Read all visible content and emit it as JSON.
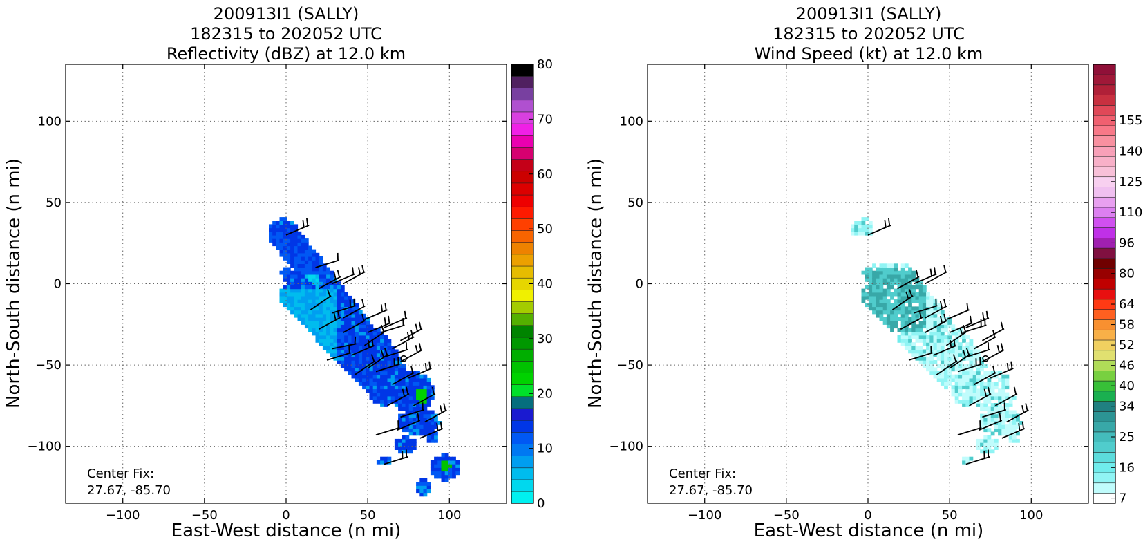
{
  "chart_data": [
    {
      "type": "heatmap",
      "title_lines": [
        "200913I1 (SALLY)",
        "182315 to 202052 UTC",
        "Reflectivity (dBZ) at 12.0 km"
      ],
      "xlabel": "East-West distance (n mi)",
      "ylabel": "North-South distance (n mi)",
      "xlim": [
        -135,
        135
      ],
      "ylim": [
        -135,
        135
      ],
      "xticks": [
        -100,
        -50,
        0,
        50,
        100
      ],
      "yticks": [
        -100,
        -50,
        0,
        50,
        100
      ],
      "xtick_labels": [
        "−100",
        "−50",
        "0",
        "50",
        "100"
      ],
      "ytick_labels": [
        "−100",
        "−50",
        "0",
        "50",
        "100"
      ],
      "grid": true,
      "annotation": [
        "Center Fix:",
        "27.67, -85.70"
      ],
      "colorbar": {
        "min": 0,
        "max": 80,
        "tick_values": [
          0,
          10,
          20,
          30,
          40,
          50,
          60,
          70,
          80
        ],
        "tick_labels": [
          "0",
          "10",
          "20",
          "30",
          "40",
          "50",
          "60",
          "70",
          "80"
        ],
        "colors": [
          "#00f0f0",
          "#00d8ee",
          "#00bcee",
          "#009ef0",
          "#0078f2",
          "#0058f4",
          "#0036e6",
          "#1a1ad0",
          "#056e7e",
          "#00e02a",
          "#00d200",
          "#00c200",
          "#00ae00",
          "#009800",
          "#008400",
          "#54b000",
          "#a4cc00",
          "#f0f000",
          "#e6d600",
          "#e6bc00",
          "#eca000",
          "#ee8200",
          "#f86400",
          "#ff4000",
          "#fe1a00",
          "#ee0000",
          "#dc0000",
          "#cc0000",
          "#c40018",
          "#d60070",
          "#ea00b0",
          "#f020e6",
          "#d840e0",
          "#b050d0",
          "#7840a0",
          "#502060",
          "#000000"
        ]
      },
      "wind_barbs": [
        [
          0,
          30,
          0.4
        ],
        [
          18,
          10,
          0.3
        ],
        [
          20,
          -3,
          0.5
        ],
        [
          28,
          0,
          0.4
        ],
        [
          35,
          0,
          0.5
        ],
        [
          15,
          -16,
          0.6
        ],
        [
          28,
          -18,
          0.3
        ],
        [
          35,
          -21,
          0.5
        ],
        [
          48,
          -22,
          0.4
        ],
        [
          60,
          -27,
          0.4
        ],
        [
          20,
          -28,
          0.5
        ],
        [
          35,
          -30,
          0.5
        ],
        [
          50,
          -30,
          0.4
        ],
        [
          58,
          -30,
          0.3
        ],
        [
          70,
          -35,
          0.5
        ],
        [
          48,
          -38,
          0.6
        ],
        [
          65,
          -40,
          0.5
        ],
        [
          28,
          -40,
          0.2
        ],
        [
          40,
          -44,
          0.4
        ],
        [
          25,
          -47,
          0.3
        ],
        [
          50,
          -52,
          0.6
        ],
        [
          60,
          -45,
          0.3
        ],
        [
          70,
          -48,
          0.5
        ],
        [
          42,
          -56,
          0.6
        ],
        [
          55,
          -54,
          0.3
        ],
        [
          65,
          -62,
          0.5
        ],
        [
          75,
          -58,
          0.4
        ],
        [
          78,
          -75,
          0.5
        ],
        [
          62,
          -75,
          0.5
        ],
        [
          70,
          -82,
          0.3
        ],
        [
          85,
          -85,
          0.5
        ],
        [
          68,
          -90,
          0.4
        ],
        [
          82,
          -95,
          0.4
        ],
        [
          55,
          -93,
          0.3
        ],
        [
          60,
          -111,
          0.3
        ]
      ]
    },
    {
      "type": "heatmap",
      "title_lines": [
        "200913I1 (SALLY)",
        "182315 to 202052 UTC",
        "Wind Speed (kt) at 12.0 km"
      ],
      "xlabel": "East-West distance (n mi)",
      "ylabel": "North-South distance (n mi)",
      "xlim": [
        -135,
        135
      ],
      "ylim": [
        -135,
        135
      ],
      "xticks": [
        -100,
        -50,
        0,
        50,
        100
      ],
      "yticks": [
        -100,
        -50,
        0,
        50,
        100
      ],
      "xtick_labels": [
        "−100",
        "−50",
        "0",
        "50",
        "100"
      ],
      "ytick_labels": [
        "−100",
        "−50",
        "0",
        "50",
        "100"
      ],
      "grid": true,
      "annotation": [
        "Center Fix:",
        "27.67, -85.70"
      ],
      "colorbar": {
        "tick_labels": [
          "7",
          "16",
          "25",
          "34",
          "40",
          "46",
          "52",
          "58",
          "64",
          "80",
          "96",
          "110",
          "125",
          "140",
          "155"
        ],
        "tick_bins": [
          0,
          3,
          6,
          9,
          11,
          13,
          15,
          17,
          19,
          22,
          25,
          28,
          31,
          34,
          37
        ],
        "colors": [
          "#ffffff",
          "#c0fcfc",
          "#90f4f4",
          "#70ecec",
          "#5cdcdc",
          "#50cccc",
          "#44bcbc",
          "#38a8a8",
          "#2c9494",
          "#208080",
          "#1ab050",
          "#38c038",
          "#78d040",
          "#b0dc58",
          "#e0e070",
          "#f0d060",
          "#f8b048",
          "#f89030",
          "#fe6020",
          "#ff3a14",
          "#e81010",
          "#c00000",
          "#980000",
          "#700000",
          "#801040",
          "#a020b0",
          "#c030e8",
          "#d050f0",
          "#dc80f0",
          "#e8a0f0",
          "#f0c0f0",
          "#f8d0f0",
          "#f8c0d8",
          "#f8b0c8",
          "#f8a0b8",
          "#f890a0",
          "#f87888",
          "#f06070",
          "#e04858",
          "#c83040",
          "#b02038",
          "#a01838",
          "#901038"
        ]
      },
      "wind_barbs": [
        [
          0,
          30,
          0.4
        ],
        [
          18,
          -3,
          0.5
        ],
        [
          28,
          0,
          0.4
        ],
        [
          35,
          0,
          0.5
        ],
        [
          15,
          -16,
          0.6
        ],
        [
          28,
          -18,
          0.3
        ],
        [
          35,
          -21,
          0.5
        ],
        [
          48,
          -22,
          0.4
        ],
        [
          60,
          -27,
          0.4
        ],
        [
          20,
          -28,
          0.5
        ],
        [
          35,
          -30,
          0.5
        ],
        [
          50,
          -30,
          0.4
        ],
        [
          58,
          -30,
          0.3
        ],
        [
          70,
          -35,
          0.5
        ],
        [
          48,
          -38,
          0.6
        ],
        [
          65,
          -40,
          0.5
        ],
        [
          40,
          -44,
          0.4
        ],
        [
          25,
          -47,
          0.3
        ],
        [
          50,
          -52,
          0.6
        ],
        [
          60,
          -45,
          0.3
        ],
        [
          70,
          -48,
          0.5
        ],
        [
          42,
          -56,
          0.6
        ],
        [
          55,
          -54,
          0.3
        ],
        [
          65,
          -62,
          0.5
        ],
        [
          75,
          -58,
          0.4
        ],
        [
          78,
          -75,
          0.5
        ],
        [
          62,
          -75,
          0.5
        ],
        [
          70,
          -82,
          0.3
        ],
        [
          85,
          -85,
          0.5
        ],
        [
          68,
          -90,
          0.4
        ],
        [
          82,
          -95,
          0.4
        ],
        [
          55,
          -93,
          0.3
        ],
        [
          60,
          -111,
          0.3
        ]
      ]
    }
  ]
}
